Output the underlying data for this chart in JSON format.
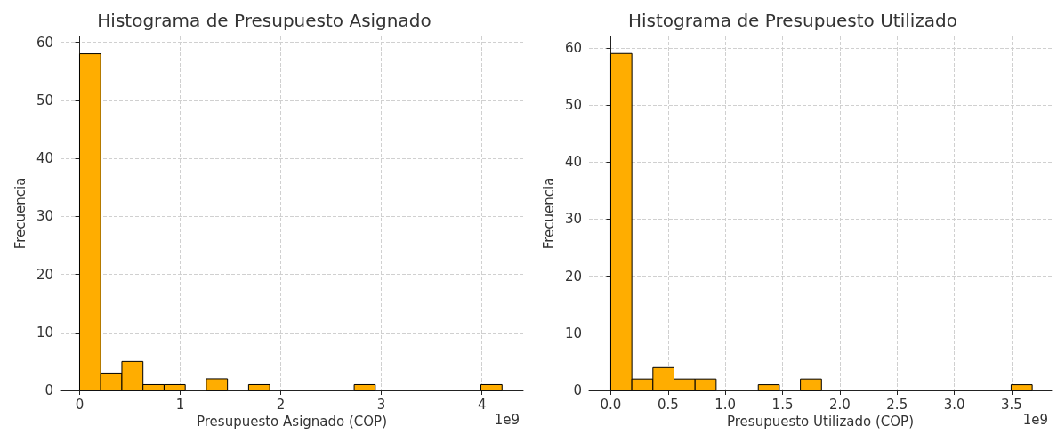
{
  "chart_data": [
    {
      "type": "histogram",
      "title": "Histograma de Presupuesto Asignado",
      "xlabel": "Presupuesto Asignado (COP)",
      "ylabel": "Frecuencia",
      "bins": [
        0,
        0.21,
        0.42,
        0.63,
        0.84,
        1.05,
        1.26,
        1.47,
        1.68,
        1.89,
        2.1,
        2.31,
        2.52,
        2.73,
        2.94,
        3.15,
        3.36,
        3.57,
        3.78,
        3.99,
        4.2
      ],
      "values": [
        58,
        3,
        5,
        1,
        1,
        0,
        2,
        0,
        1,
        0,
        0,
        0,
        0,
        1,
        0,
        0,
        0,
        0,
        0,
        1
      ],
      "color": "#ffad00",
      "xlim": [
        -0.19,
        4.41
      ],
      "xticks": [
        0,
        1,
        2,
        3,
        4
      ],
      "ylim": [
        0,
        61
      ],
      "yticks": [
        0,
        10,
        20,
        30,
        40,
        50,
        60
      ],
      "annotations": [
        "1e9"
      ],
      "grid": true
    },
    {
      "type": "histogram",
      "title": "Histograma de Presupuesto Utilizado",
      "xlabel": "Presupuesto Utilizado (COP)",
      "ylabel": "Frecuencia",
      "bins": [
        0,
        0.184,
        0.368,
        0.552,
        0.736,
        0.92,
        1.104,
        1.288,
        1.472,
        1.656,
        1.84,
        2.024,
        2.208,
        2.392,
        2.576,
        2.76,
        2.944,
        3.128,
        3.312,
        3.496,
        3.68
      ],
      "values": [
        59,
        2,
        4,
        2,
        2,
        0,
        0,
        1,
        0,
        2,
        0,
        0,
        0,
        0,
        0,
        0,
        0,
        0,
        0,
        1
      ],
      "color": "#ffad00",
      "xlim": [
        -0.19,
        3.85
      ],
      "xticks": [
        {
          "value": 0,
          "label": "0.0"
        },
        {
          "value": 0.5,
          "label": "0.5"
        },
        {
          "value": 1,
          "label": "1.0"
        },
        {
          "value": 1.5,
          "label": "1.5"
        },
        {
          "value": 2,
          "label": "2.0"
        },
        {
          "value": 2.5,
          "label": "2.5"
        },
        {
          "value": 3,
          "label": "3.0"
        },
        {
          "value": 3.5,
          "label": "3.5"
        }
      ],
      "ylim": [
        0,
        62
      ],
      "yticks": [
        0,
        10,
        20,
        30,
        40,
        50,
        60
      ],
      "annotations": [
        "1e9"
      ],
      "grid": true
    }
  ]
}
